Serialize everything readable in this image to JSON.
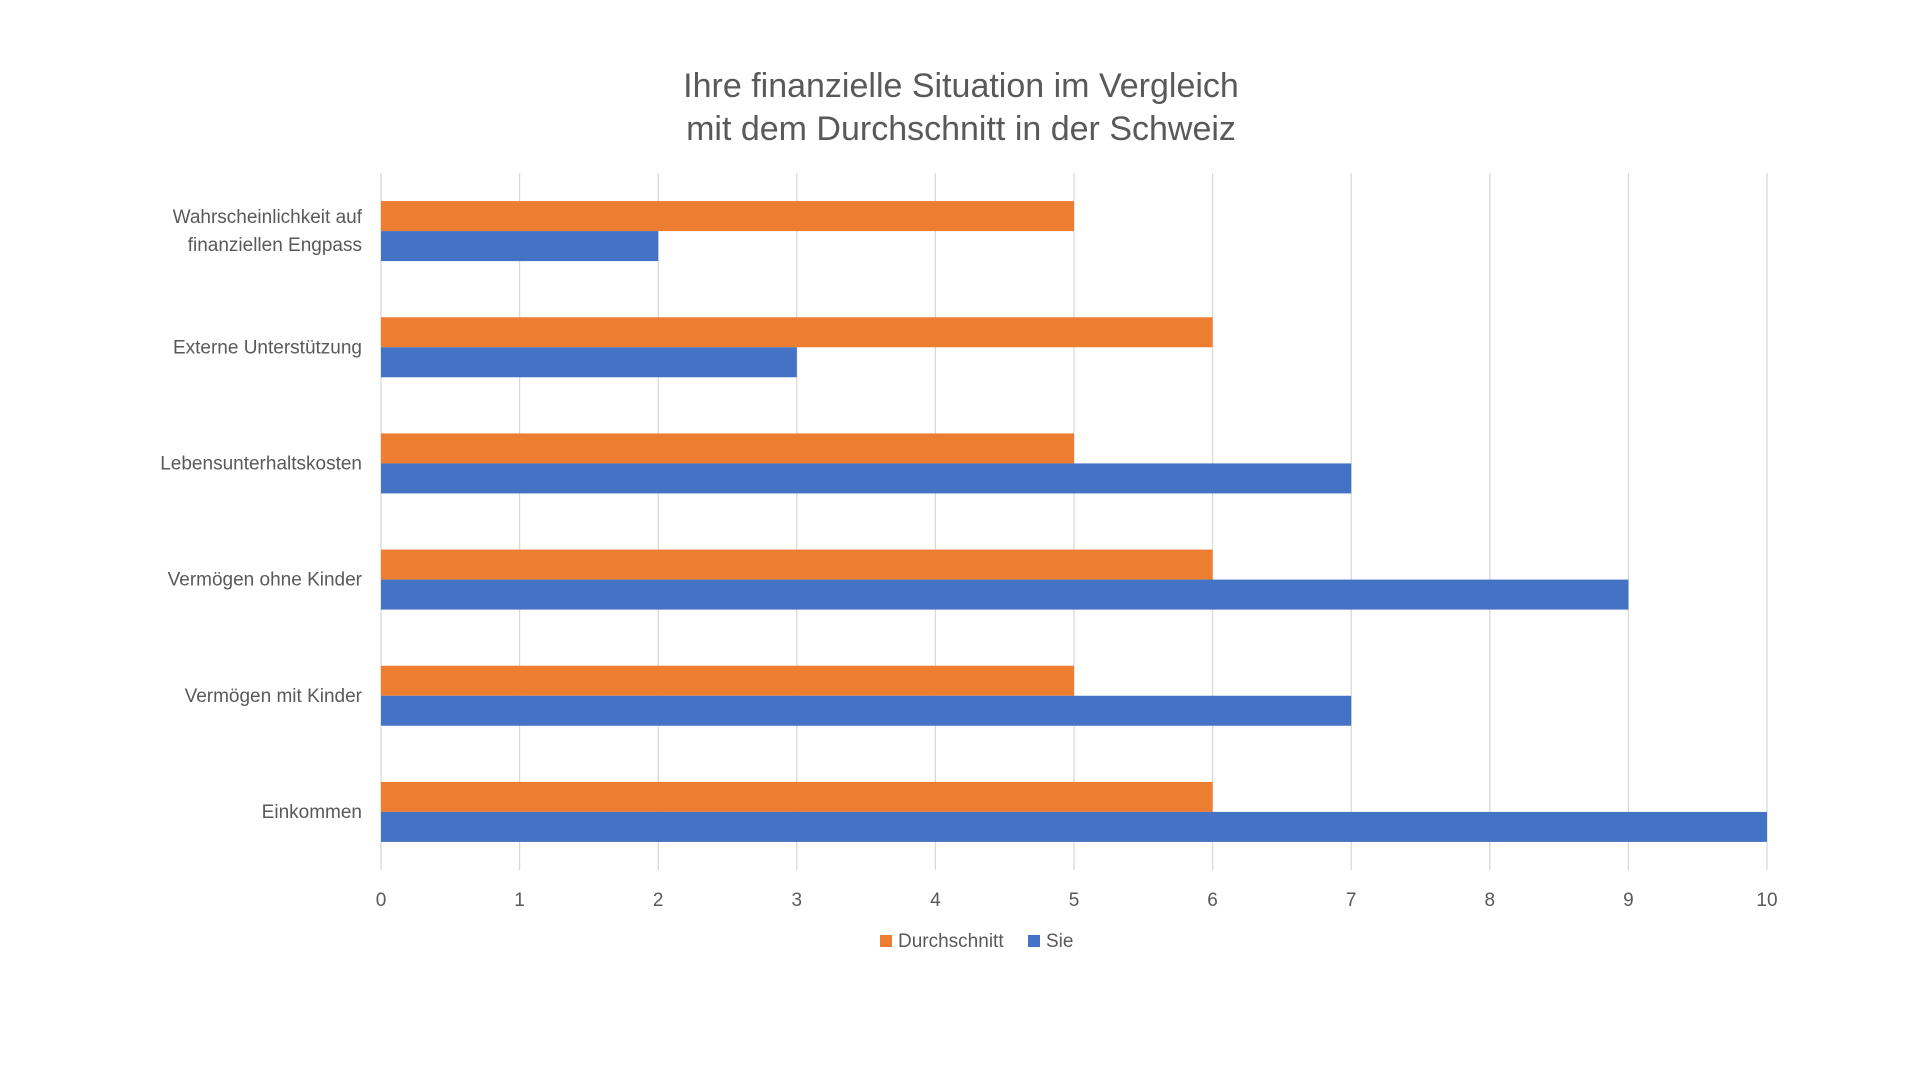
{
  "chart_data": {
    "type": "bar",
    "orientation": "horizontal",
    "title": [
      "Ihre finanzielle Situation im Vergleich",
      "mit dem Durchschnitt in der Schweiz"
    ],
    "categories": [
      [
        "Wahrscheinlichkeit auf",
        "finanziellen Engpass"
      ],
      [
        "Externe Unterstützung"
      ],
      [
        "Lebensunterhaltskosten"
      ],
      [
        "Vermögen ohne Kinder"
      ],
      [
        "Vermögen mit Kinder"
      ],
      [
        "Einkommen"
      ]
    ],
    "series": [
      {
        "name": "Durchschnitt",
        "color": "#ed7d31",
        "values": [
          5,
          6,
          5,
          6,
          5,
          6
        ]
      },
      {
        "name": "Sie",
        "color": "#4472c4",
        "values": [
          2,
          3,
          7,
          9,
          7,
          10
        ]
      }
    ],
    "xlim": [
      0,
      10
    ],
    "xticks": [
      "0",
      "1",
      "2",
      "3",
      "4",
      "5",
      "6",
      "7",
      "8",
      "9",
      "10"
    ],
    "xlabel": "",
    "ylabel": "",
    "grid": "vertical",
    "legend": "bottom"
  }
}
